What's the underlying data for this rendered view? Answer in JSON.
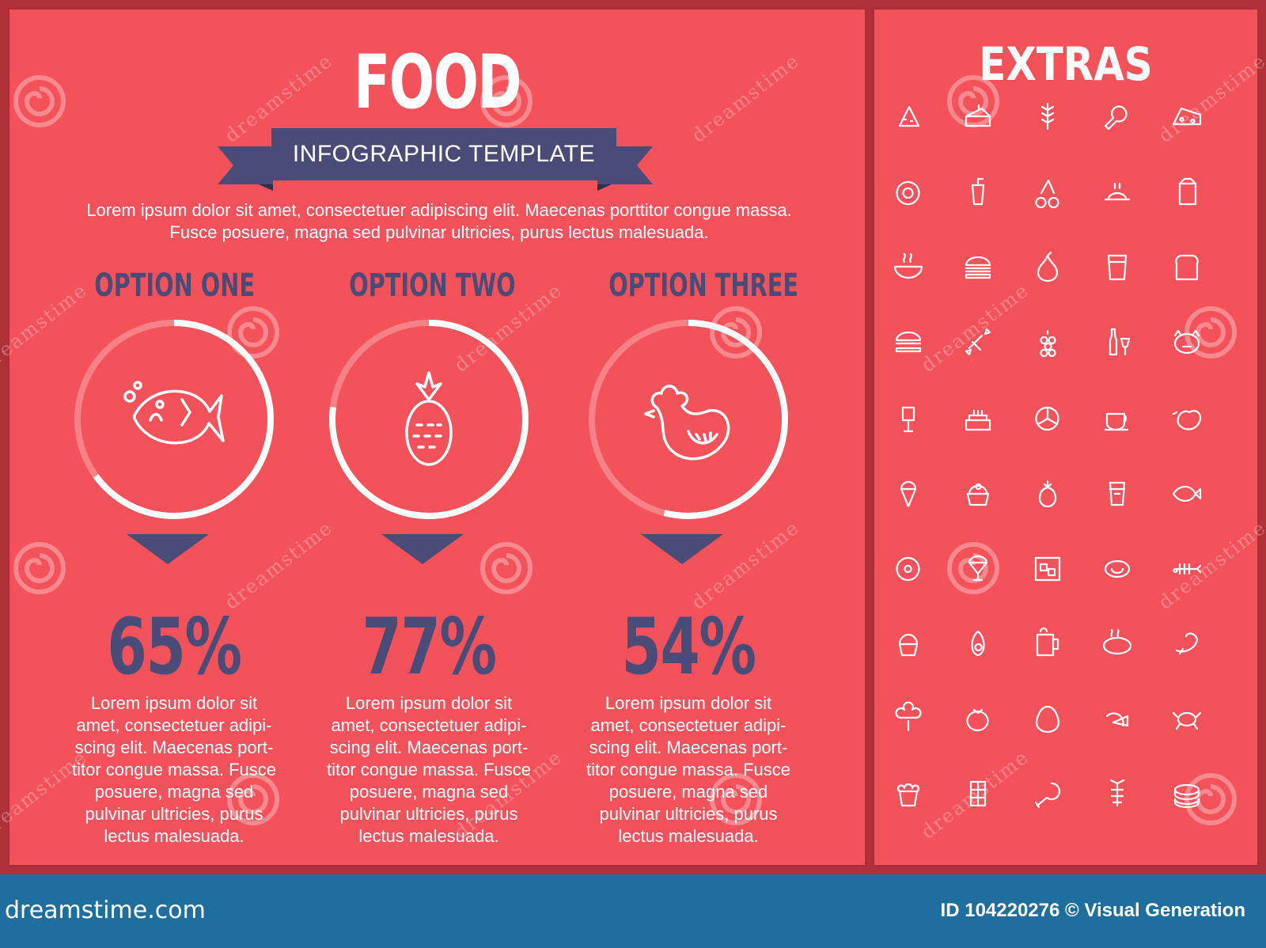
{
  "title": "FOOD",
  "banner": "INFOGRAPHIC TEMPLATE",
  "intro": "Lorem ipsum dolor sit amet, consectetuer adipiscing elit. Maecenas porttitor congue massa. Fusce posuere, magna sed pulvinar ultricies, purus lectus malesuada.",
  "options": [
    {
      "title": "OPTION ONE",
      "percent_label": "65%",
      "progress": 0.65,
      "icon": "fish-icon",
      "description_lines": [
        "Lorem ipsum dolor sit",
        "amet, consectetuer adipi-",
        "scing elit. Maecenas port-",
        "titor congue massa. Fusce",
        "posuere, magna sed",
        "pulvinar ultricies, purus",
        "lectus malesuada."
      ]
    },
    {
      "title": "OPTION TWO",
      "percent_label": "77%",
      "progress": 0.77,
      "icon": "pineapple-icon",
      "description_lines": [
        "Lorem ipsum dolor sit",
        "amet, consectetuer adipi-",
        "scing elit. Maecenas port-",
        "titor congue massa. Fusce",
        "posuere, magna sed",
        "pulvinar ultricies, purus",
        "lectus malesuada."
      ]
    },
    {
      "title": "OPTION THREE",
      "percent_label": "54%",
      "progress": 0.54,
      "icon": "chicken-icon",
      "description_lines": [
        "Lorem ipsum dolor sit",
        "amet, consectetuer adipi-",
        "scing elit. Maecenas port-",
        "titor congue massa. Fusce",
        "posuere, magna sed",
        "pulvinar ultricies, purus",
        "lectus malesuada."
      ]
    }
  ],
  "extras": {
    "title": "EXTRAS",
    "icons": [
      "pizza-slice-icon",
      "cake-slice-icon",
      "wheat-icon",
      "ham-leg-icon",
      "cheese-icon",
      "fried-egg-icon",
      "soda-cup-icon",
      "cherries-icon",
      "roast-chicken-icon",
      "milk-carton-icon",
      "soup-bowl-icon",
      "burger-icon",
      "pear-icon",
      "juice-glass-icon",
      "bread-icon",
      "hamburger-icon",
      "candy-icon",
      "grapes-icon",
      "wine-icon",
      "pig-icon",
      "sausage-fork-icon",
      "birthday-cake-icon",
      "citrus-slice-icon",
      "coffee-cup-icon",
      "hen-icon",
      "ice-cream-icon",
      "cupcake-icon",
      "pineapple-icon",
      "takeaway-cup-icon",
      "fish-icon",
      "donut-icon",
      "sundae-icon",
      "ice-cubes-icon",
      "steak-icon",
      "fish-bone-icon",
      "muffin-icon",
      "avocado-icon",
      "beer-mug-icon",
      "grilled-steak-icon",
      "shrimp-icon",
      "broccoli-icon",
      "tomato-icon",
      "egg-icon",
      "lemon-slice-icon",
      "crab-icon",
      "popcorn-icon",
      "chocolate-bar-icon",
      "drumstick-icon",
      "lobster-icon",
      "sushi-icon"
    ]
  },
  "watermark": {
    "text": "dreamstime"
  },
  "footer": {
    "site": "dreamstime.com",
    "credit": "ID 104220276 © Visual Generation"
  },
  "colors": {
    "background": "#f3525b",
    "frame": "#b0303a",
    "accent_navy": "#4a4c78",
    "footer": "#1e6f9e",
    "text_light": "#ffffff"
  }
}
